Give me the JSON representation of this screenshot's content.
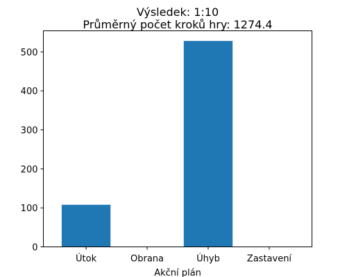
{
  "chart_data": {
    "type": "bar",
    "title": "Výsledek: 1:10",
    "subtitle": "Průměrný počet kroků hry: 1274.4",
    "xlabel": "Akční plán",
    "ylabel": "",
    "categories": [
      "Útok",
      "Obrana",
      "Úhyb",
      "Zastavení"
    ],
    "values": [
      108,
      0,
      528,
      0
    ],
    "ylim": [
      0,
      554
    ],
    "yticks": [
      0,
      100,
      200,
      300,
      400,
      500
    ],
    "ytick_labels": [
      "0",
      "100",
      "200",
      "300",
      "400",
      "500"
    ],
    "bar_color": "#1f77b4",
    "grid": false
  }
}
